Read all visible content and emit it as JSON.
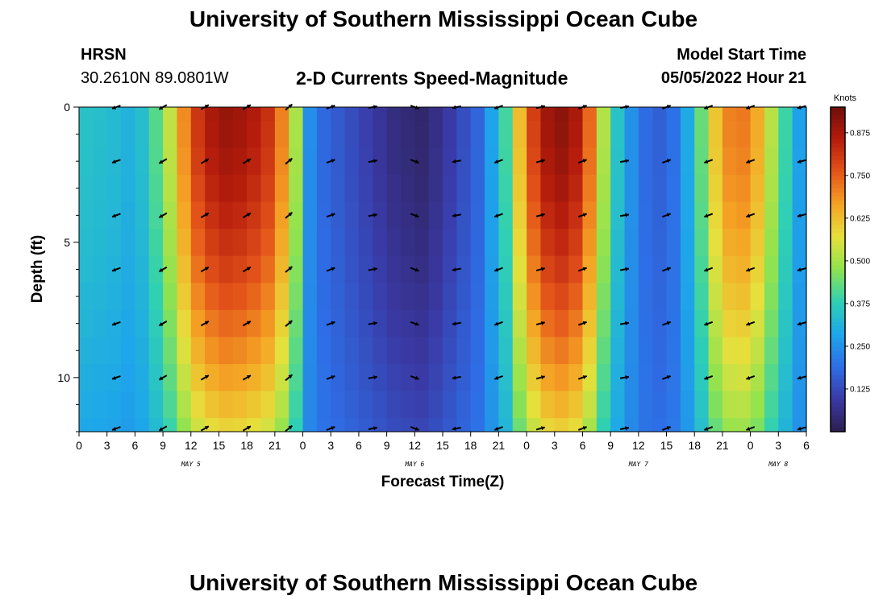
{
  "header": {
    "title": "University of Southern Mississippi Ocean Cube",
    "station": "HRSN",
    "coords": "30.2610N  89.0801W",
    "plot_title": "2-D Currents Speed-Magnitude",
    "model_label": "Model Start Time",
    "model_time": "05/05/2022 Hour 21"
  },
  "footer": {
    "title": "University of Southern Mississippi Ocean Cube"
  },
  "chart_data": {
    "type": "heatmap",
    "title": "2-D Currents Speed-Magnitude",
    "xlabel": "Forecast Time(Z)",
    "ylabel": "Depth (ft)",
    "colorbar_label": "Knots",
    "x_start_hour": 0,
    "x_end_hour": 78,
    "x_step_hours": 1.5,
    "x_tick_labels": [
      "0",
      "3",
      "6",
      "9",
      "12",
      "15",
      "18",
      "21",
      "0",
      "3",
      "6",
      "9",
      "12",
      "15",
      "18",
      "21",
      "0",
      "3",
      "6",
      "9",
      "12",
      "15",
      "18",
      "21",
      "0",
      "3",
      "6"
    ],
    "x_tick_hours": [
      0,
      3,
      6,
      9,
      12,
      15,
      18,
      21,
      24,
      27,
      30,
      33,
      36,
      39,
      42,
      45,
      48,
      51,
      54,
      57,
      60,
      63,
      66,
      69,
      72,
      75,
      78
    ],
    "day_labels": [
      {
        "label": "MAY 5",
        "hour": 12
      },
      {
        "label": "MAY 6",
        "hour": 36
      },
      {
        "label": "MAY 7",
        "hour": 60
      },
      {
        "label": "MAY 8",
        "hour": 75
      }
    ],
    "y_range_ft": [
      0,
      12
    ],
    "y_ticks": [
      0,
      5,
      10
    ],
    "depth_levels_ft": [
      0,
      1,
      2,
      3,
      4,
      5,
      6,
      7,
      8,
      9,
      10,
      11,
      12
    ],
    "colorbar_ticks": [
      0.125,
      0.25,
      0.375,
      0.5,
      0.625,
      0.75,
      0.875
    ],
    "colorbar_tick_labels": [
      "0.125",
      "0.250",
      "0.375",
      "0.500",
      "0.625",
      "0.750",
      "0.875"
    ],
    "colorbar_range": [
      0.0,
      0.95
    ],
    "colorscale": [
      "#2d1e4f",
      "#3a3aa6",
      "#2e6ee6",
      "#1ea6ea",
      "#2fd0b4",
      "#8fe34f",
      "#e6e03c",
      "#f5a324",
      "#e4541a",
      "#b51c0c",
      "#6e0e08"
    ],
    "speed_profile": [
      {
        "hour": 0,
        "v": 0.35
      },
      {
        "hour": 4,
        "v": 0.33
      },
      {
        "hour": 6,
        "v": 0.3
      },
      {
        "hour": 8,
        "v": 0.4
      },
      {
        "hour": 10,
        "v": 0.55
      },
      {
        "hour": 12,
        "v": 0.78
      },
      {
        "hour": 15,
        "v": 0.9
      },
      {
        "hour": 18,
        "v": 0.88
      },
      {
        "hour": 21,
        "v": 0.8
      },
      {
        "hour": 23,
        "v": 0.55
      },
      {
        "hour": 25,
        "v": 0.2
      },
      {
        "hour": 28,
        "v": 0.15
      },
      {
        "hour": 31,
        "v": 0.1
      },
      {
        "hour": 34,
        "v": 0.05
      },
      {
        "hour": 37,
        "v": 0.03
      },
      {
        "hour": 40,
        "v": 0.1
      },
      {
        "hour": 43,
        "v": 0.18
      },
      {
        "hour": 46,
        "v": 0.42
      },
      {
        "hour": 48,
        "v": 0.75
      },
      {
        "hour": 51,
        "v": 0.93
      },
      {
        "hour": 54,
        "v": 0.85
      },
      {
        "hour": 57,
        "v": 0.4
      },
      {
        "hour": 60,
        "v": 0.2
      },
      {
        "hour": 62,
        "v": 0.16
      },
      {
        "hour": 64,
        "v": 0.2
      },
      {
        "hour": 66,
        "v": 0.35
      },
      {
        "hour": 69,
        "v": 0.7
      },
      {
        "hour": 72,
        "v": 0.72
      },
      {
        "hour": 75,
        "v": 0.45
      },
      {
        "hour": 78,
        "v": 0.22
      }
    ],
    "arrow_rows_ft": [
      0,
      2,
      4,
      6,
      8,
      10,
      12
    ],
    "arrow_hours": [
      4,
      9,
      13.5,
      18,
      22.5,
      27,
      31.5,
      36,
      40.5,
      45,
      49.5,
      54,
      58.5,
      63,
      67.5,
      72,
      77.5
    ],
    "arrow_direction_deg": [
      200,
      210,
      30,
      30,
      40,
      20,
      10,
      340,
      190,
      200,
      15,
      20,
      10,
      20,
      200,
      200,
      195
    ]
  }
}
